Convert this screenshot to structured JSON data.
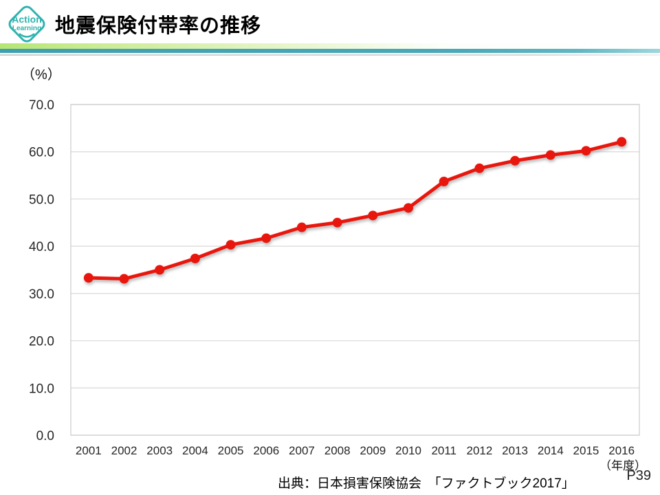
{
  "header": {
    "title": "地震保険付帯率の推移",
    "logo": {
      "line1": "Action",
      "line2": "Learning"
    }
  },
  "chart": {
    "unit_label": "（%）",
    "x_axis_unit": "（年度）"
  },
  "chart_data": {
    "type": "line",
    "title": "地震保険付帯率の推移",
    "x": [
      "2001",
      "2002",
      "2003",
      "2004",
      "2005",
      "2006",
      "2007",
      "2008",
      "2009",
      "2010",
      "2011",
      "2012",
      "2013",
      "2014",
      "2015",
      "2016"
    ],
    "series": [
      {
        "name": "地震保険付帯率",
        "values": [
          33.3,
          33.1,
          35.0,
          37.4,
          40.3,
          41.7,
          44.0,
          45.0,
          46.5,
          48.1,
          53.7,
          56.5,
          58.1,
          59.3,
          60.2,
          62.1
        ]
      }
    ],
    "xlabel": "（年度）",
    "ylabel": "（%）",
    "ylim": [
      0,
      70
    ],
    "ytick_step": 10,
    "ytick_decimals": 1,
    "grid": true,
    "legend": "none",
    "line_color": "#e8150d",
    "marker": "circle"
  },
  "footer": {
    "source": "出典：日本損害保険協会　「ファクトブック2017」",
    "page": "P39"
  },
  "colors": {
    "logo_teal": "#2fb3af",
    "divider_teal": "#4aa9b8",
    "divider_green": "#c3e87f",
    "gridline_gray": "#d9d9d9",
    "line_red": "#e8150d"
  }
}
